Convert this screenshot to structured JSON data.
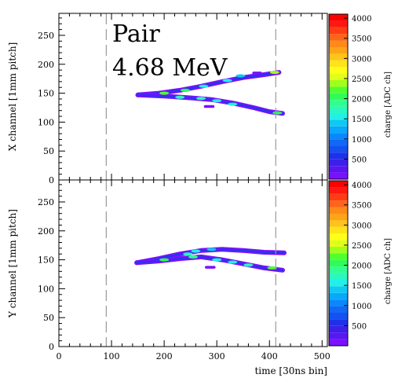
{
  "chart_data": [
    {
      "type": "heatmap",
      "panel": "top",
      "annotations": [
        "Pair",
        "4.68 MeV"
      ],
      "xlabel": "",
      "ylabel": "X channel [1mm pitch]",
      "xlim": [
        0,
        510
      ],
      "ylim": [
        0,
        288
      ],
      "xticks": [
        0,
        100,
        200,
        300,
        400,
        500
      ],
      "yticks": [
        0,
        50,
        100,
        150,
        200,
        250
      ],
      "dashed_vlines_x": [
        90,
        412
      ],
      "colorbar": {
        "label": "charge [ADC ch]",
        "range": [
          0,
          4100
        ],
        "ticks": [
          500,
          1000,
          1500,
          2000,
          2500,
          3000,
          3500,
          4000
        ]
      },
      "tracks": [
        {
          "name": "upper-branch",
          "points": [
            [
              150,
              147
            ],
            [
              190,
              150
            ],
            [
              230,
              155
            ],
            [
              270,
              162
            ],
            [
              310,
              170
            ],
            [
              350,
              177
            ],
            [
              390,
              182
            ],
            [
              418,
              186
            ]
          ]
        },
        {
          "name": "lower-branch",
          "points": [
            [
              150,
              147
            ],
            [
              200,
              145
            ],
            [
              250,
              142
            ],
            [
              290,
              139
            ],
            [
              330,
              133
            ],
            [
              370,
              125
            ],
            [
              400,
              118
            ],
            [
              425,
              115
            ]
          ]
        }
      ],
      "hotspots": [
        [
          200,
          150,
          2200
        ],
        [
          240,
          155,
          2000
        ],
        [
          275,
          162,
          1600
        ],
        [
          320,
          172,
          1500
        ],
        [
          345,
          180,
          1400
        ],
        [
          410,
          186,
          2300
        ],
        [
          230,
          143,
          1800
        ],
        [
          270,
          141,
          1700
        ],
        [
          300,
          137,
          1500
        ],
        [
          330,
          131,
          1600
        ],
        [
          415,
          116,
          2000
        ]
      ],
      "fragments": [
        [
          278,
          127
        ],
        [
          293,
          127
        ],
        [
          370,
          185
        ],
        [
          383,
          185
        ]
      ]
    },
    {
      "type": "heatmap",
      "panel": "bottom",
      "xlabel": "time [30ns bin]",
      "ylabel": "Y channel [1mm pitch]",
      "xlim": [
        0,
        510
      ],
      "ylim": [
        0,
        288
      ],
      "xticks": [
        0,
        100,
        200,
        300,
        400,
        500
      ],
      "yticks": [
        0,
        50,
        100,
        150,
        200,
        250
      ],
      "dashed_vlines_x": [
        90,
        412
      ],
      "colorbar": {
        "label": "charge [ADC ch]",
        "range": [
          0,
          4100
        ],
        "ticks": [
          500,
          1000,
          1500,
          2000,
          2500,
          3000,
          3500,
          4000
        ]
      },
      "tracks": [
        {
          "name": "upper-branch",
          "points": [
            [
              148,
              145
            ],
            [
              190,
              152
            ],
            [
              230,
              160
            ],
            [
              270,
              166
            ],
            [
              310,
              168
            ],
            [
              350,
              166
            ],
            [
              390,
              163
            ],
            [
              428,
              162
            ]
          ]
        },
        {
          "name": "lower-branch",
          "points": [
            [
              148,
              145
            ],
            [
              190,
              148
            ],
            [
              230,
              152
            ],
            [
              270,
              155
            ],
            [
              310,
              150
            ],
            [
              350,
              143
            ],
            [
              390,
              136
            ],
            [
              425,
              132
            ]
          ]
        }
      ],
      "hotspots": [
        [
          200,
          150,
          2100
        ],
        [
          245,
          160,
          1800
        ],
        [
          260,
          165,
          1500
        ],
        [
          290,
          168,
          1400
        ],
        [
          255,
          155,
          1900
        ],
        [
          300,
          150,
          1600
        ],
        [
          330,
          146,
          1500
        ],
        [
          360,
          141,
          1700
        ],
        [
          405,
          136,
          2200
        ]
      ],
      "fragments": [
        [
          280,
          137
        ],
        [
          295,
          137
        ]
      ]
    }
  ],
  "colorscale": [
    "#7a10ff",
    "#5a16f0",
    "#3c20ea",
    "#2030e8",
    "#1550f0",
    "#1068f5",
    "#0a88fb",
    "#08a8fb",
    "#10c8f2",
    "#22f0e8",
    "#2af8c0",
    "#30ff90",
    "#30fb58",
    "#50ff30",
    "#a0ff1c",
    "#e0ff18",
    "#ffff18",
    "#ffe418",
    "#ffc418",
    "#ffa418",
    "#ff8a18",
    "#ff6418",
    "#ff3c14",
    "#ff1810",
    "#ff0000"
  ]
}
